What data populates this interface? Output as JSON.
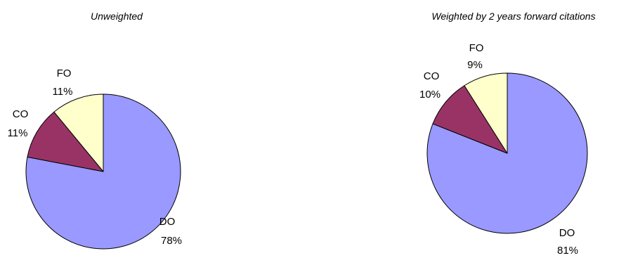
{
  "chart_data": [
    {
      "type": "pie",
      "title": "Unweighted",
      "slices": [
        {
          "label": "DO",
          "value": 78,
          "value_label": "78%",
          "color": "#9999FF"
        },
        {
          "label": "CO",
          "value": 11,
          "value_label": "11%",
          "color": "#993366"
        },
        {
          "label": "FO",
          "value": 11,
          "value_label": "11%",
          "color": "#FFFFCC"
        }
      ]
    },
    {
      "type": "pie",
      "title": "Weighted by 2 years forward citations",
      "slices": [
        {
          "label": "DO",
          "value": 81,
          "value_label": "81%",
          "color": "#9999FF"
        },
        {
          "label": "CO",
          "value": 10,
          "value_label": "10%",
          "color": "#993366"
        },
        {
          "label": "FO",
          "value": 9,
          "value_label": "9%",
          "color": "#FFFFCC"
        }
      ]
    }
  ]
}
